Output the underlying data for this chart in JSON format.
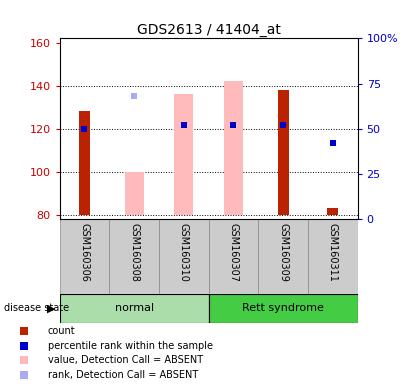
{
  "title": "GDS2613 / 41404_at",
  "samples": [
    "GSM160306",
    "GSM160308",
    "GSM160310",
    "GSM160307",
    "GSM160309",
    "GSM160311"
  ],
  "ylim_left": [
    78,
    162
  ],
  "ylim_right": [
    0,
    100
  ],
  "yticks_left": [
    80,
    100,
    120,
    140,
    160
  ],
  "yticks_right": [
    0,
    25,
    50,
    75,
    100
  ],
  "baseline": 80,
  "red_bar_tops": [
    128,
    null,
    null,
    null,
    138,
    83
  ],
  "pink_bar_ranges": [
    null,
    [
      80,
      100
    ],
    [
      80,
      136
    ],
    [
      80,
      142
    ],
    null,
    null
  ],
  "blue_square_values": [
    50,
    null,
    52,
    52,
    52,
    42
  ],
  "light_blue_square_values": [
    null,
    135,
    null,
    null,
    null,
    null
  ],
  "red_color": "#bb2200",
  "pink_color": "#ffbbbb",
  "blue_color": "#0000cc",
  "light_blue_color": "#aaaaee",
  "normal_group_color": "#aaddaa",
  "rett_group_color": "#44cc44",
  "sample_box_color": "#cccccc",
  "title_fontsize": 10,
  "axis_color_left": "#cc0000",
  "axis_color_right": "#0000cc",
  "group_info": [
    {
      "label": "normal",
      "start": 0,
      "end": 2,
      "color": "#aaddaa"
    },
    {
      "label": "Rett syndrome",
      "start": 3,
      "end": 5,
      "color": "#44cc44"
    }
  ]
}
